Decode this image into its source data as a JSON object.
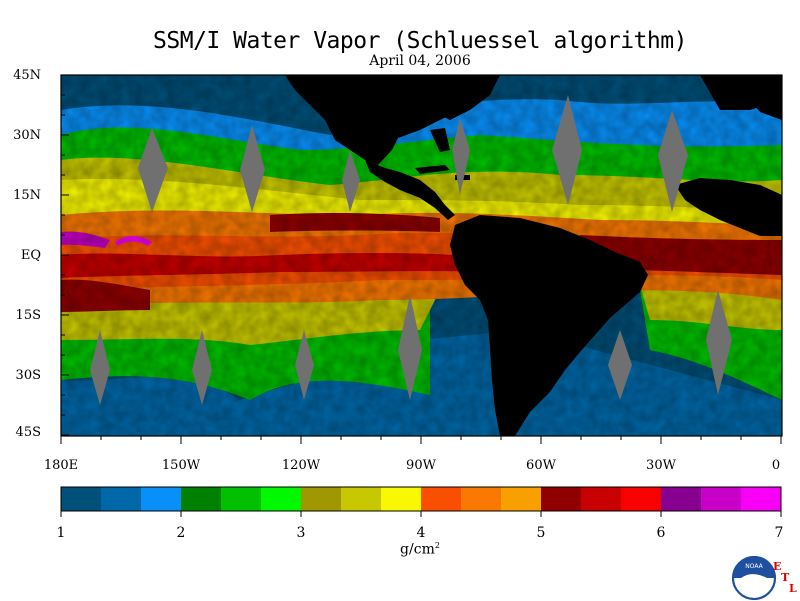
{
  "title": "SSM/I Water Vapor (Schluessel algorithm)",
  "date": "April 04, 2006",
  "lat_labels": [
    "45N",
    "30N",
    "15N",
    "EQ",
    "15S",
    "30S",
    "45S"
  ],
  "lon_labels": [
    "180E",
    "150W",
    "120W",
    "90W",
    "60W",
    "30W",
    "0"
  ],
  "colorbar": {
    "colors": [
      "#00507a",
      "#0068a8",
      "#0890f8",
      "#008000",
      "#00c000",
      "#00f800",
      "#a09800",
      "#c8c800",
      "#f8f800",
      "#f85000",
      "#f87800",
      "#f8a000",
      "#900000",
      "#c80000",
      "#f80000",
      "#880090",
      "#c800c8",
      "#f800f8"
    ],
    "tick_labels": [
      "1",
      "2",
      "3",
      "4",
      "5",
      "6",
      "7"
    ],
    "units": "g/cm",
    "units_sup": "2"
  },
  "logo": {
    "text": "NOAA",
    "etl": [
      "E",
      "T",
      "L"
    ]
  },
  "colors": {
    "land": "#000000",
    "gap": "#707070"
  }
}
